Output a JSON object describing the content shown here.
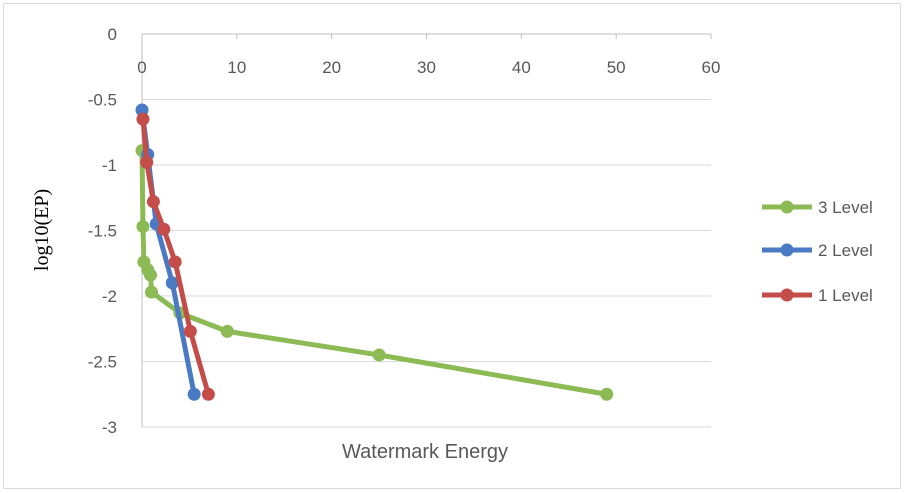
{
  "chart_data": {
    "type": "scatter",
    "xlabel": "Watermark Energy",
    "ylabel": "log10(EP)",
    "xlim": [
      0,
      60
    ],
    "ylim": [
      -3,
      0
    ],
    "x_ticks": [
      "0",
      "10",
      "20",
      "30",
      "40",
      "50",
      "60"
    ],
    "y_ticks": [
      "0",
      "-0.5",
      "-1",
      "-1.5",
      "-2",
      "-2.5",
      "-3"
    ],
    "grid": "horizontal",
    "legend_position": "right",
    "series": [
      {
        "name": "3 Level",
        "color": "#8cba54",
        "points": [
          [
            0,
            -0.89
          ],
          [
            0.1,
            -1.47
          ],
          [
            0.2,
            -1.74
          ],
          [
            0.6,
            -1.8
          ],
          [
            0.9,
            -1.84
          ],
          [
            1,
            -1.97
          ],
          [
            4,
            -2.13
          ],
          [
            9,
            -2.27
          ],
          [
            25,
            -2.45
          ],
          [
            49,
            -2.75
          ]
        ]
      },
      {
        "name": "2 Level",
        "color": "#4a7ac4",
        "points": [
          [
            0,
            -0.58
          ],
          [
            0.6,
            -0.92
          ],
          [
            1.5,
            -1.45
          ],
          [
            3.2,
            -1.9
          ],
          [
            5.5,
            -2.75
          ]
        ]
      },
      {
        "name": "1 Level",
        "color": "#c44d4a",
        "points": [
          [
            0.1,
            -0.65
          ],
          [
            0.5,
            -0.98
          ],
          [
            1.2,
            -1.28
          ],
          [
            2.3,
            -1.49
          ],
          [
            3.5,
            -1.74
          ],
          [
            5.1,
            -2.27
          ],
          [
            7,
            -2.75
          ]
        ]
      }
    ]
  }
}
